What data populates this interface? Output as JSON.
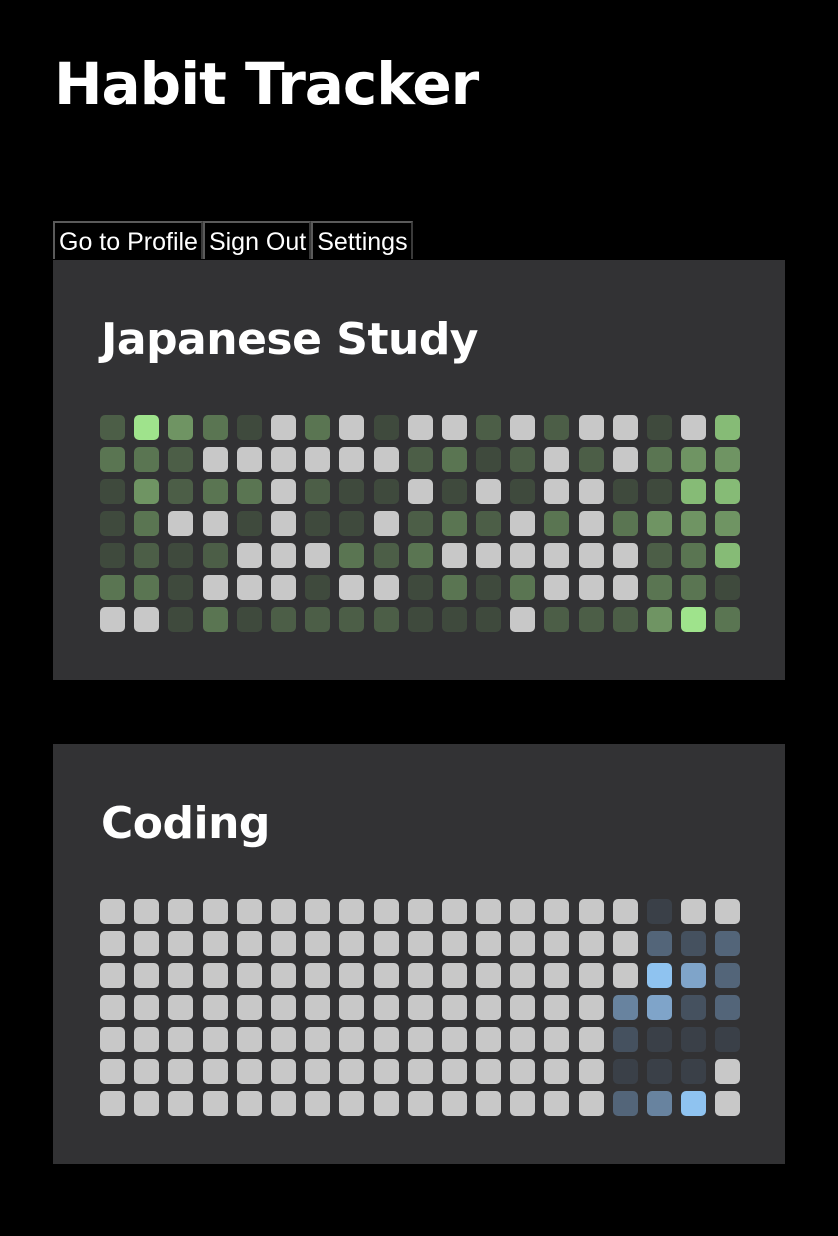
{
  "header": {
    "title": "Habit Tracker"
  },
  "nav": {
    "buttons": [
      {
        "id": "profile",
        "label": "Go to Profile"
      },
      {
        "id": "signout",
        "label": "Sign Out"
      },
      {
        "id": "settings",
        "label": "Settings"
      }
    ]
  },
  "colors": {
    "background": "#000000",
    "card": "#323234",
    "empty_cell": "#c8c8c8"
  },
  "habits": [
    {
      "title": "Japanese Study",
      "palette": {
        "empty": "#c8c8c8",
        "levels": [
          "#3f4a3d",
          "#4c5e47",
          "#5a7552",
          "#6f9463",
          "#86bb76",
          "#9fe38c"
        ]
      },
      "grid": [
        [
          2,
          6,
          4,
          3,
          1,
          0,
          3,
          0,
          1,
          0,
          0,
          2,
          0,
          2,
          0,
          0,
          1,
          0,
          5
        ],
        [
          3,
          3,
          2,
          0,
          0,
          0,
          0,
          0,
          0,
          2,
          3,
          1,
          2,
          0,
          2,
          0,
          3,
          4,
          4
        ],
        [
          1,
          4,
          2,
          3,
          3,
          0,
          2,
          1,
          1,
          0,
          1,
          0,
          1,
          0,
          0,
          1,
          1,
          5,
          5
        ],
        [
          1,
          3,
          0,
          0,
          1,
          0,
          1,
          1,
          0,
          2,
          3,
          2,
          0,
          3,
          0,
          3,
          4,
          4,
          4
        ],
        [
          1,
          2,
          1,
          2,
          0,
          0,
          0,
          3,
          2,
          3,
          0,
          0,
          0,
          0,
          0,
          0,
          2,
          3,
          5
        ],
        [
          3,
          3,
          1,
          0,
          0,
          0,
          1,
          0,
          0,
          1,
          3,
          1,
          3,
          0,
          0,
          0,
          3,
          3,
          1
        ],
        [
          0,
          0,
          1,
          3,
          1,
          2,
          2,
          2,
          2,
          1,
          1,
          1,
          0,
          2,
          2,
          2,
          4,
          6,
          3
        ]
      ]
    },
    {
      "title": "Coding",
      "palette": {
        "empty": "#c8c8c8",
        "levels": [
          "#3a4048",
          "#45515f",
          "#536579",
          "#68839f",
          "#7fa4c9",
          "#8fc3f0"
        ]
      },
      "grid": [
        [
          0,
          0,
          0,
          0,
          0,
          0,
          0,
          0,
          0,
          0,
          0,
          0,
          0,
          0,
          0,
          0,
          1,
          0,
          0
        ],
        [
          0,
          0,
          0,
          0,
          0,
          0,
          0,
          0,
          0,
          0,
          0,
          0,
          0,
          0,
          0,
          0,
          3,
          2,
          3
        ],
        [
          0,
          0,
          0,
          0,
          0,
          0,
          0,
          0,
          0,
          0,
          0,
          0,
          0,
          0,
          0,
          0,
          6,
          5,
          3
        ],
        [
          0,
          0,
          0,
          0,
          0,
          0,
          0,
          0,
          0,
          0,
          0,
          0,
          0,
          0,
          0,
          4,
          5,
          2,
          3
        ],
        [
          0,
          0,
          0,
          0,
          0,
          0,
          0,
          0,
          0,
          0,
          0,
          0,
          0,
          0,
          0,
          2,
          1,
          1,
          1
        ],
        [
          0,
          0,
          0,
          0,
          0,
          0,
          0,
          0,
          0,
          0,
          0,
          0,
          0,
          0,
          0,
          1,
          1,
          1,
          0
        ],
        [
          0,
          0,
          0,
          0,
          0,
          0,
          0,
          0,
          0,
          0,
          0,
          0,
          0,
          0,
          0,
          3,
          4,
          6,
          0
        ]
      ]
    }
  ]
}
